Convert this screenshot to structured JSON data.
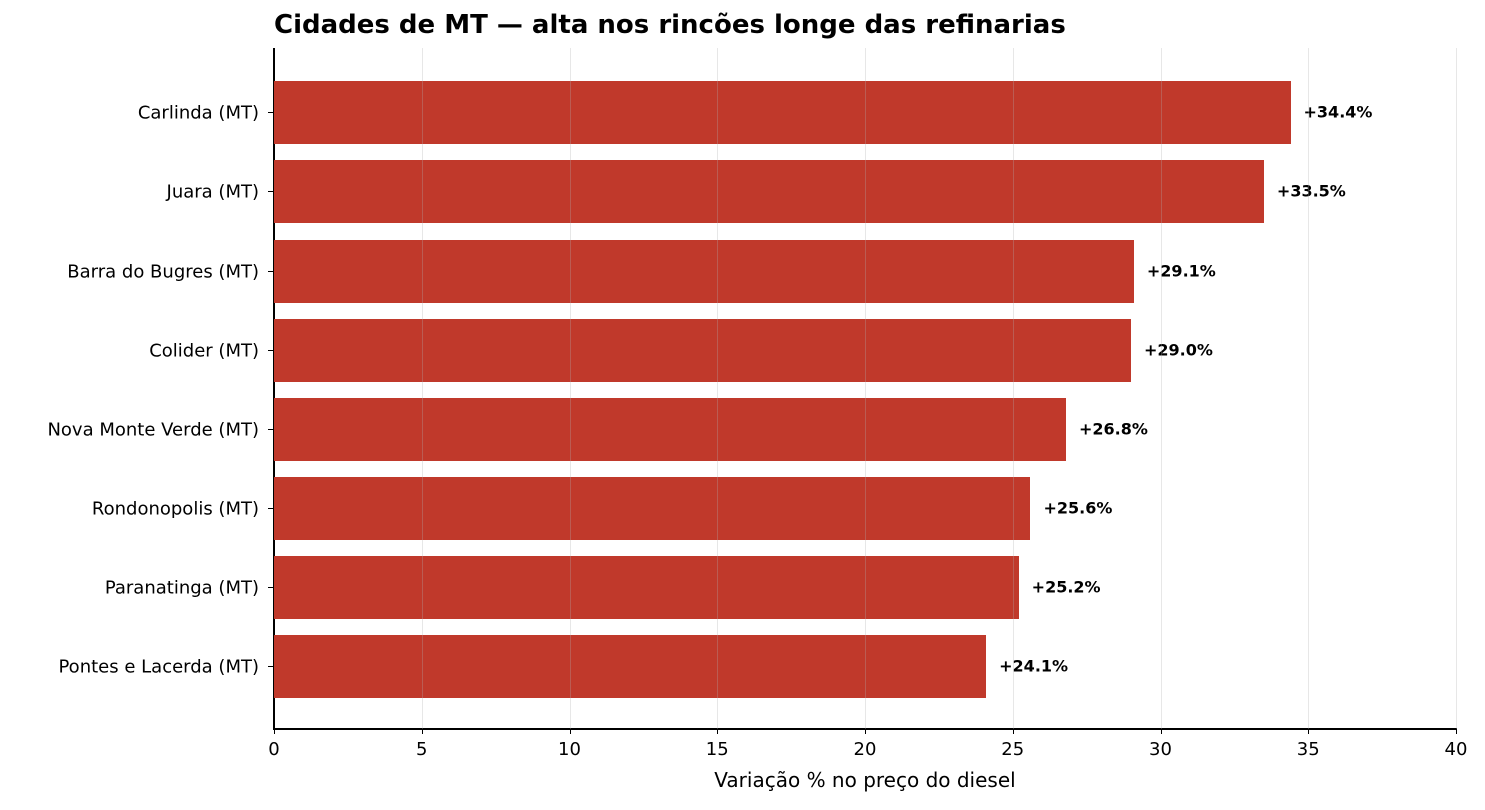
{
  "chart_data": {
    "type": "bar",
    "orientation": "horizontal",
    "title": "Cidades de MT — alta nos rincões longe das refinarias",
    "xlabel": "Variação % no preço do diesel",
    "ylabel": "",
    "xlim": [
      0,
      40
    ],
    "xticks": [
      "0",
      "5",
      "10",
      "15",
      "20",
      "25",
      "30",
      "35",
      "40"
    ],
    "grid": "x-axis vertical lines",
    "bar_color": "#c0392b",
    "categories": [
      "Carlinda (MT)",
      "Juara (MT)",
      "Barra do Bugres (MT)",
      "Colider (MT)",
      "Nova Monte Verde (MT)",
      "Rondonopolis (MT)",
      "Paranatinga (MT)",
      "Pontes e Lacerda (MT)"
    ],
    "values": [
      34.4,
      33.5,
      29.1,
      29.0,
      26.8,
      25.6,
      25.2,
      24.1
    ],
    "value_labels": [
      "+34.4%",
      "+33.5%",
      "+29.1%",
      "+29.0%",
      "+26.8%",
      "+25.6%",
      "+25.2%",
      "+24.1%"
    ]
  }
}
